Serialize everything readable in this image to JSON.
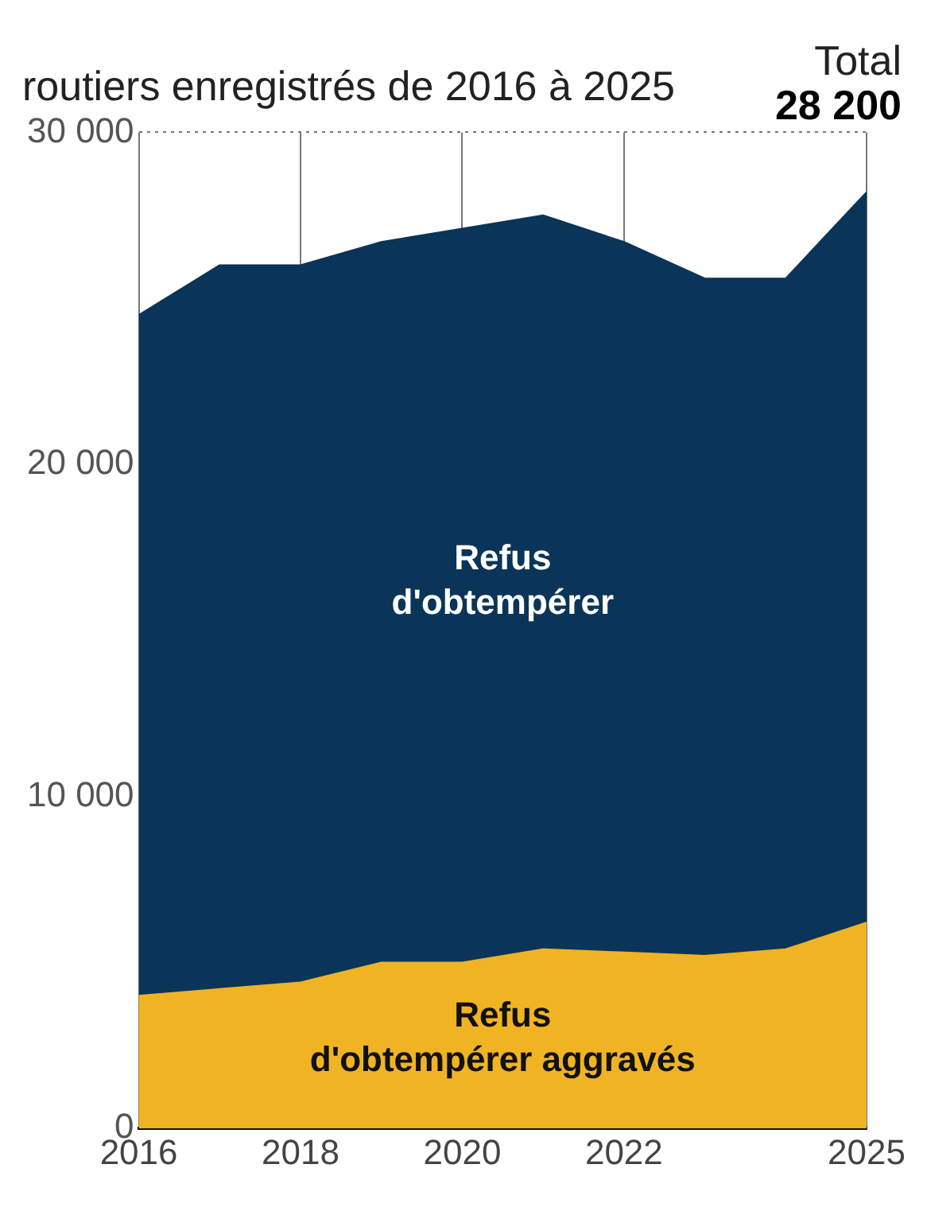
{
  "chart_data": {
    "type": "area",
    "title": "routiers enregistrés de 2016 à 2025",
    "stacked": true,
    "grid": true,
    "legend": false,
    "marker": "none",
    "x": [
      2016,
      2017,
      2018,
      2019,
      2020,
      2021,
      2022,
      2023,
      2024,
      2025
    ],
    "series": [
      {
        "name": "Refus d'obtempérer aggravés",
        "color": "#f0b323",
        "values": [
          4000,
          4200,
          4400,
          5000,
          5000,
          5400,
          5300,
          5200,
          5400,
          6200
        ]
      },
      {
        "name": "Refus d'obtempérer",
        "color": "#0b3558",
        "values": [
          20500,
          21800,
          21600,
          21700,
          22100,
          22100,
          21400,
          20400,
          20200,
          22000
        ]
      }
    ],
    "xlim": [
      2016,
      2025
    ],
    "xticks": [
      2016,
      2018,
      2020,
      2022,
      2025
    ],
    "ylim": [
      0,
      30000
    ],
    "yticks": [
      {
        "value": 0,
        "label": "0"
      },
      {
        "value": 10000,
        "label": "10 000"
      },
      {
        "value": 20000,
        "label": "20 000"
      },
      {
        "value": 30000,
        "label": "30 000"
      }
    ],
    "annotations": [
      "Total",
      {
        "text": "28 200",
        "x": 2025,
        "y": 28200
      }
    ]
  }
}
